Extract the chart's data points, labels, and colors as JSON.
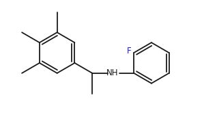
{
  "background": "#ffffff",
  "line_color": "#1a1a1a",
  "line_width": 1.3,
  "font_color_F": "#1a1af0",
  "font_color_NH": "#1a1a1a",
  "font_size_F": 8.5,
  "font_size_NH": 8.5,
  "figsize": [
    3.18,
    1.65
  ],
  "dpi": 100,
  "xlim": [
    0.0,
    3.18
  ],
  "ylim": [
    0.0,
    1.65
  ]
}
